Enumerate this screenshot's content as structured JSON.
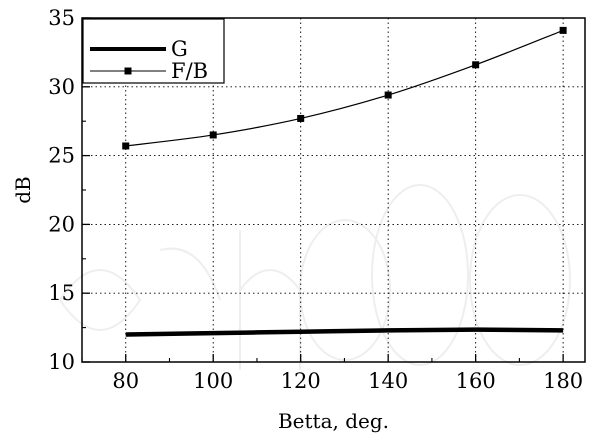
{
  "chart_data": {
    "type": "line",
    "title": "",
    "xlabel": "Betta, deg.",
    "ylabel": "dB",
    "xlim": [
      70,
      185
    ],
    "ylim": [
      10,
      35
    ],
    "xticks": [
      80,
      100,
      120,
      140,
      160,
      180
    ],
    "yticks": [
      10,
      15,
      20,
      25,
      30,
      35
    ],
    "xtick_labels": [
      "80",
      "100",
      "120",
      "140",
      "160",
      "180"
    ],
    "ytick_labels": [
      "10",
      "15",
      "20",
      "25",
      "30",
      "35"
    ],
    "grid": true,
    "grid_style": "dotted",
    "legend_position": "top-left",
    "series": [
      {
        "name": "G",
        "style": "thick-line",
        "color": "#000000",
        "x": [
          80,
          100,
          120,
          140,
          160,
          180
        ],
        "y": [
          12.0,
          12.1,
          12.2,
          12.3,
          12.35,
          12.3
        ]
      },
      {
        "name": "F/B",
        "style": "line-square-markers",
        "color": "#000000",
        "x": [
          80,
          100,
          120,
          140,
          160,
          180
        ],
        "y": [
          25.7,
          26.5,
          27.7,
          29.4,
          31.6,
          34.1
        ]
      }
    ]
  }
}
